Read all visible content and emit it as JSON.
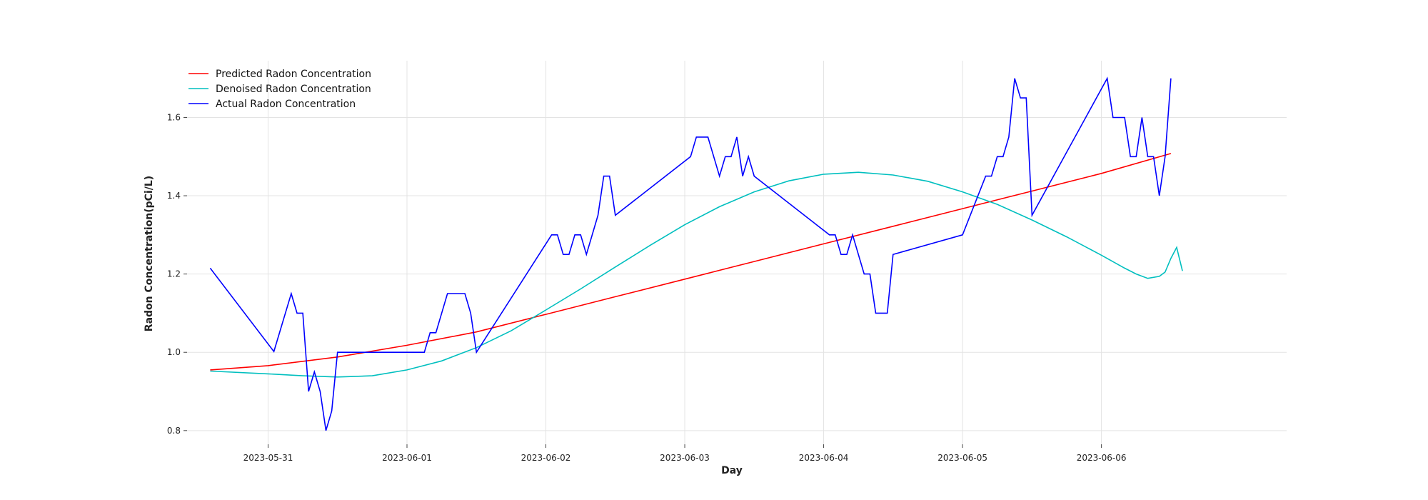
{
  "chart_data": {
    "type": "line",
    "xlabel": "Day",
    "ylabel": "Radon Concentration(pCi/L)",
    "x_ticks": [
      "2023-05-31",
      "2023-06-01",
      "2023-06-02",
      "2023-06-03",
      "2023-06-04",
      "2023-06-05",
      "2023-06-06"
    ],
    "y_ticks": [
      "0.8",
      "1.0",
      "1.2",
      "1.4",
      "1.6"
    ],
    "xlim": [
      "2023-05-30T10:00",
      "2023-06-07T08:00"
    ],
    "ylim": [
      0.765,
      1.745
    ],
    "grid": true,
    "legend_position": "top-left",
    "series": [
      {
        "name": "Predicted Radon Concentration",
        "color": "#ff0000",
        "points": [
          [
            "2023-05-30T14:00",
            0.955
          ],
          [
            "2023-05-31T00:00",
            0.966
          ],
          [
            "2023-05-31T12:00",
            0.988
          ],
          [
            "2023-06-01T00:00",
            1.018
          ],
          [
            "2023-06-01T12:00",
            1.052
          ],
          [
            "2023-06-02T00:00",
            1.097
          ],
          [
            "2023-06-02T12:00",
            1.142
          ],
          [
            "2023-06-03T00:00",
            1.187
          ],
          [
            "2023-06-03T12:00",
            1.232
          ],
          [
            "2023-06-04T00:00",
            1.277
          ],
          [
            "2023-06-04T12:00",
            1.322
          ],
          [
            "2023-06-05T00:00",
            1.367
          ],
          [
            "2023-06-05T12:00",
            1.412
          ],
          [
            "2023-06-06T00:00",
            1.457
          ],
          [
            "2023-06-06T12:00",
            1.508
          ]
        ]
      },
      {
        "name": "Denoised Radon Concentration",
        "color": "#00bfbf",
        "points": [
          [
            "2023-05-30T14:00",
            0.952
          ],
          [
            "2023-05-31T00:00",
            0.945
          ],
          [
            "2023-05-31T06:00",
            0.94
          ],
          [
            "2023-05-31T12:00",
            0.937
          ],
          [
            "2023-05-31T18:00",
            0.94
          ],
          [
            "2023-06-01T00:00",
            0.955
          ],
          [
            "2023-06-01T06:00",
            0.978
          ],
          [
            "2023-06-01T12:00",
            1.012
          ],
          [
            "2023-06-01T18:00",
            1.055
          ],
          [
            "2023-06-02T00:00",
            1.108
          ],
          [
            "2023-06-02T06:00",
            1.162
          ],
          [
            "2023-06-02T12:00",
            1.218
          ],
          [
            "2023-06-02T18:00",
            1.273
          ],
          [
            "2023-06-03T00:00",
            1.326
          ],
          [
            "2023-06-03T06:00",
            1.372
          ],
          [
            "2023-06-03T12:00",
            1.41
          ],
          [
            "2023-06-03T18:00",
            1.438
          ],
          [
            "2023-06-04T00:00",
            1.455
          ],
          [
            "2023-06-04T06:00",
            1.46
          ],
          [
            "2023-06-04T12:00",
            1.453
          ],
          [
            "2023-06-04T18:00",
            1.437
          ],
          [
            "2023-06-05T00:00",
            1.41
          ],
          [
            "2023-06-05T06:00",
            1.378
          ],
          [
            "2023-06-05T12:00",
            1.338
          ],
          [
            "2023-06-05T18:00",
            1.295
          ],
          [
            "2023-06-06T00:00",
            1.248
          ],
          [
            "2023-06-06T04:00",
            1.215
          ],
          [
            "2023-06-06T06:00",
            1.2
          ],
          [
            "2023-06-06T08:00",
            1.189
          ],
          [
            "2023-06-06T10:00",
            1.194
          ],
          [
            "2023-06-06T11:00",
            1.205
          ],
          [
            "2023-06-06T12:00",
            1.24
          ],
          [
            "2023-06-06T13:00",
            1.268
          ],
          [
            "2023-06-06T14:00",
            1.208
          ]
        ]
      },
      {
        "name": "Actual Radon Concentration",
        "color": "#0000ff",
        "points": [
          [
            "2023-05-30T14:00",
            1.215
          ],
          [
            "2023-05-31T01:00",
            1.002
          ],
          [
            "2023-05-31T04:00",
            1.15
          ],
          [
            "2023-05-31T05:00",
            1.1
          ],
          [
            "2023-05-31T06:00",
            1.1
          ],
          [
            "2023-05-31T07:00",
            0.9
          ],
          [
            "2023-05-31T08:00",
            0.95
          ],
          [
            "2023-05-31T09:00",
            0.9
          ],
          [
            "2023-05-31T10:00",
            0.8
          ],
          [
            "2023-05-31T11:00",
            0.85
          ],
          [
            "2023-05-31T12:00",
            1.0
          ],
          [
            "2023-06-01T03:00",
            1.0
          ],
          [
            "2023-06-01T04:00",
            1.05
          ],
          [
            "2023-06-01T05:00",
            1.05
          ],
          [
            "2023-06-01T07:00",
            1.15
          ],
          [
            "2023-06-01T10:00",
            1.15
          ],
          [
            "2023-06-01T11:00",
            1.1
          ],
          [
            "2023-06-01T12:00",
            1.0
          ],
          [
            "2023-06-02T01:00",
            1.3
          ],
          [
            "2023-06-02T02:00",
            1.3
          ],
          [
            "2023-06-02T03:00",
            1.25
          ],
          [
            "2023-06-02T04:00",
            1.25
          ],
          [
            "2023-06-02T05:00",
            1.3
          ],
          [
            "2023-06-02T06:00",
            1.3
          ],
          [
            "2023-06-02T07:00",
            1.25
          ],
          [
            "2023-06-02T09:00",
            1.35
          ],
          [
            "2023-06-02T10:00",
            1.45
          ],
          [
            "2023-06-02T11:00",
            1.45
          ],
          [
            "2023-06-02T12:00",
            1.35
          ],
          [
            "2023-06-03T01:00",
            1.5
          ],
          [
            "2023-06-03T02:00",
            1.55
          ],
          [
            "2023-06-03T04:00",
            1.55
          ],
          [
            "2023-06-03T06:00",
            1.45
          ],
          [
            "2023-06-03T07:00",
            1.5
          ],
          [
            "2023-06-03T08:00",
            1.5
          ],
          [
            "2023-06-03T09:00",
            1.55
          ],
          [
            "2023-06-03T10:00",
            1.45
          ],
          [
            "2023-06-03T11:00",
            1.5
          ],
          [
            "2023-06-03T12:00",
            1.45
          ],
          [
            "2023-06-04T01:00",
            1.3
          ],
          [
            "2023-06-04T02:00",
            1.3
          ],
          [
            "2023-06-04T03:00",
            1.25
          ],
          [
            "2023-06-04T04:00",
            1.25
          ],
          [
            "2023-06-04T05:00",
            1.3
          ],
          [
            "2023-06-04T07:00",
            1.2
          ],
          [
            "2023-06-04T08:00",
            1.2
          ],
          [
            "2023-06-04T09:00",
            1.1
          ],
          [
            "2023-06-04T11:00",
            1.1
          ],
          [
            "2023-06-04T12:00",
            1.25
          ],
          [
            "2023-06-05T00:00",
            1.3
          ],
          [
            "2023-06-05T04:00",
            1.45
          ],
          [
            "2023-06-05T05:00",
            1.45
          ],
          [
            "2023-06-05T06:00",
            1.5
          ],
          [
            "2023-06-05T07:00",
            1.5
          ],
          [
            "2023-06-05T08:00",
            1.55
          ],
          [
            "2023-06-05T09:00",
            1.7
          ],
          [
            "2023-06-05T10:00",
            1.65
          ],
          [
            "2023-06-05T11:00",
            1.65
          ],
          [
            "2023-06-05T12:00",
            1.35
          ],
          [
            "2023-06-06T01:00",
            1.7
          ],
          [
            "2023-06-06T02:00",
            1.6
          ],
          [
            "2023-06-06T04:00",
            1.6
          ],
          [
            "2023-06-06T05:00",
            1.5
          ],
          [
            "2023-06-06T06:00",
            1.5
          ],
          [
            "2023-06-06T07:00",
            1.6
          ],
          [
            "2023-06-06T08:00",
            1.5
          ],
          [
            "2023-06-06T09:00",
            1.5
          ],
          [
            "2023-06-06T10:00",
            1.4
          ],
          [
            "2023-06-06T11:00",
            1.5
          ],
          [
            "2023-06-06T12:00",
            1.7
          ]
        ]
      }
    ]
  }
}
